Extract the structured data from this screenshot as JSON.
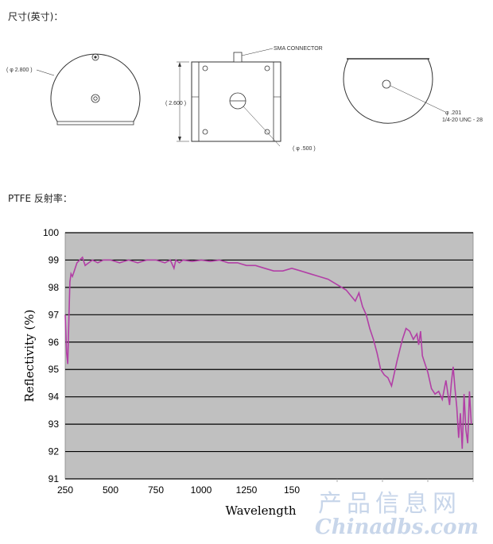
{
  "headings": {
    "dimensions": "尺寸(英寸)：",
    "reflectance": "PTFE 反射率："
  },
  "drawing": {
    "left_label": "( φ 2.800 )",
    "height_label": "( 2.600 )",
    "sma_label": "SMA CONNECTOR",
    "bore_label": "( φ .500 )",
    "hole_label_1": "φ .201",
    "hole_label_2": "1/4-20 UNC - 28"
  },
  "chart_data": {
    "type": "line",
    "xlabel": "Wavelength",
    "ylabel": "Reflectivity (%)",
    "xlim": [
      250,
      2500
    ],
    "ylim": [
      91,
      100
    ],
    "xticks": [
      "250",
      "500",
      "750",
      "1000",
      "1250",
      "150"
    ],
    "yticks": [
      "91",
      "92",
      "93",
      "94",
      "95",
      "96",
      "97",
      "98",
      "99",
      "100"
    ],
    "grid": "horizontal",
    "line_color": "#b23fa6",
    "plot_bg": "#c0c0c0",
    "series": [
      {
        "x": [
          250,
          258,
          264,
          270,
          276,
          282,
          290,
          300,
          315,
          330,
          345,
          360,
          380,
          400,
          430,
          460,
          500,
          550,
          600,
          650,
          700,
          750,
          800,
          830,
          850,
          860,
          880,
          900,
          950,
          1000,
          1050,
          1100,
          1150,
          1200,
          1250,
          1300,
          1350,
          1400,
          1450,
          1500,
          1550,
          1600,
          1650,
          1700,
          1750,
          1800,
          1850,
          1870,
          1890,
          1910,
          1930,
          1950,
          1970,
          1990,
          2010,
          2030,
          2050,
          2080,
          2110,
          2130,
          2150,
          2170,
          2190,
          2200,
          2210,
          2220,
          2230,
          2240,
          2250,
          2260,
          2270,
          2290,
          2310,
          2330,
          2350,
          2370,
          2380,
          2390,
          2400,
          2410,
          2420,
          2430,
          2440,
          2450,
          2460,
          2470,
          2480,
          2490
        ],
        "y": [
          97.0,
          95.6,
          95.2,
          96.8,
          98.2,
          98.5,
          98.4,
          98.6,
          98.9,
          99.0,
          99.1,
          98.8,
          98.9,
          99.0,
          98.9,
          99.0,
          99.0,
          98.9,
          99.0,
          98.9,
          99.0,
          99.0,
          98.9,
          99.0,
          98.7,
          99.0,
          98.9,
          99.0,
          98.95,
          99.0,
          98.95,
          99.0,
          98.9,
          98.9,
          98.8,
          98.8,
          98.7,
          98.6,
          98.6,
          98.7,
          98.6,
          98.5,
          98.4,
          98.3,
          98.1,
          97.9,
          97.5,
          97.8,
          97.3,
          97.0,
          96.5,
          96.1,
          95.6,
          95.0,
          94.8,
          94.7,
          94.4,
          95.3,
          96.1,
          96.5,
          96.4,
          96.1,
          96.3,
          95.9,
          96.4,
          95.5,
          95.3,
          95.1,
          94.9,
          94.6,
          94.3,
          94.1,
          94.2,
          93.9,
          94.6,
          93.7,
          94.5,
          95.1,
          94.3,
          93.6,
          92.5,
          93.4,
          92.1,
          94.1,
          92.8,
          92.3,
          94.2,
          93.0
        ]
      }
    ]
  },
  "watermark": {
    "cn": "产品信息网",
    "en": "Chinadbs.com"
  }
}
